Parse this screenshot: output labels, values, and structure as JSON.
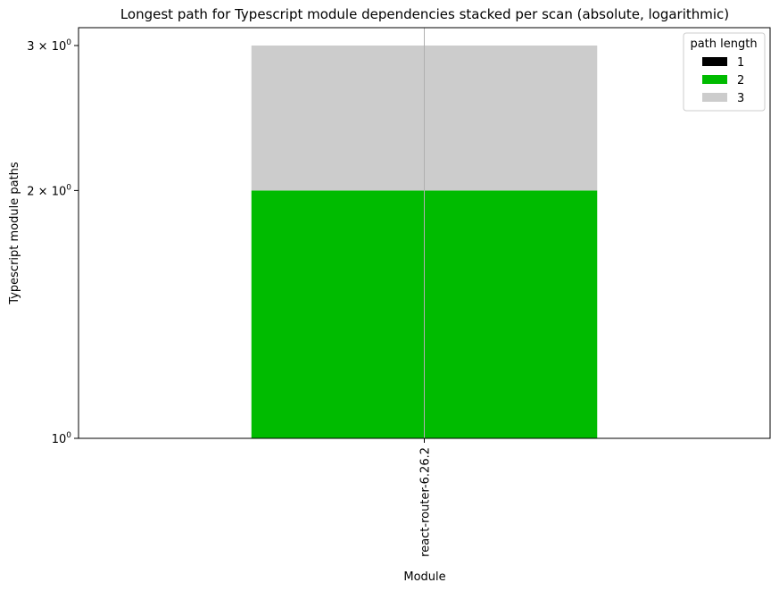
{
  "chart_data": {
    "type": "bar",
    "stacked": true,
    "title": "Longest path for Typescript module dependencies stacked per scan (absolute, logarithmic)",
    "xlabel": "Module",
    "ylabel": "Typescript module paths",
    "y_scale": "log",
    "ylim": [
      1,
      3
    ],
    "yticks": [
      {
        "value": 1,
        "base": "10",
        "exp": "0"
      },
      {
        "value": 2,
        "base": "2 × 10",
        "exp": "0"
      },
      {
        "value": 3,
        "base": "3 × 10",
        "exp": "0"
      }
    ],
    "categories": [
      "react-router-6.26.2"
    ],
    "series": [
      {
        "name": "1",
        "values": [
          0
        ],
        "color": "#000000"
      },
      {
        "name": "2",
        "values": [
          2
        ],
        "color": "#00bb00"
      },
      {
        "name": "3",
        "values": [
          1
        ],
        "color": "#cccccc"
      }
    ],
    "grid": "vertical at x ticks",
    "legend": {
      "title": "path length",
      "position": "top-right"
    }
  }
}
